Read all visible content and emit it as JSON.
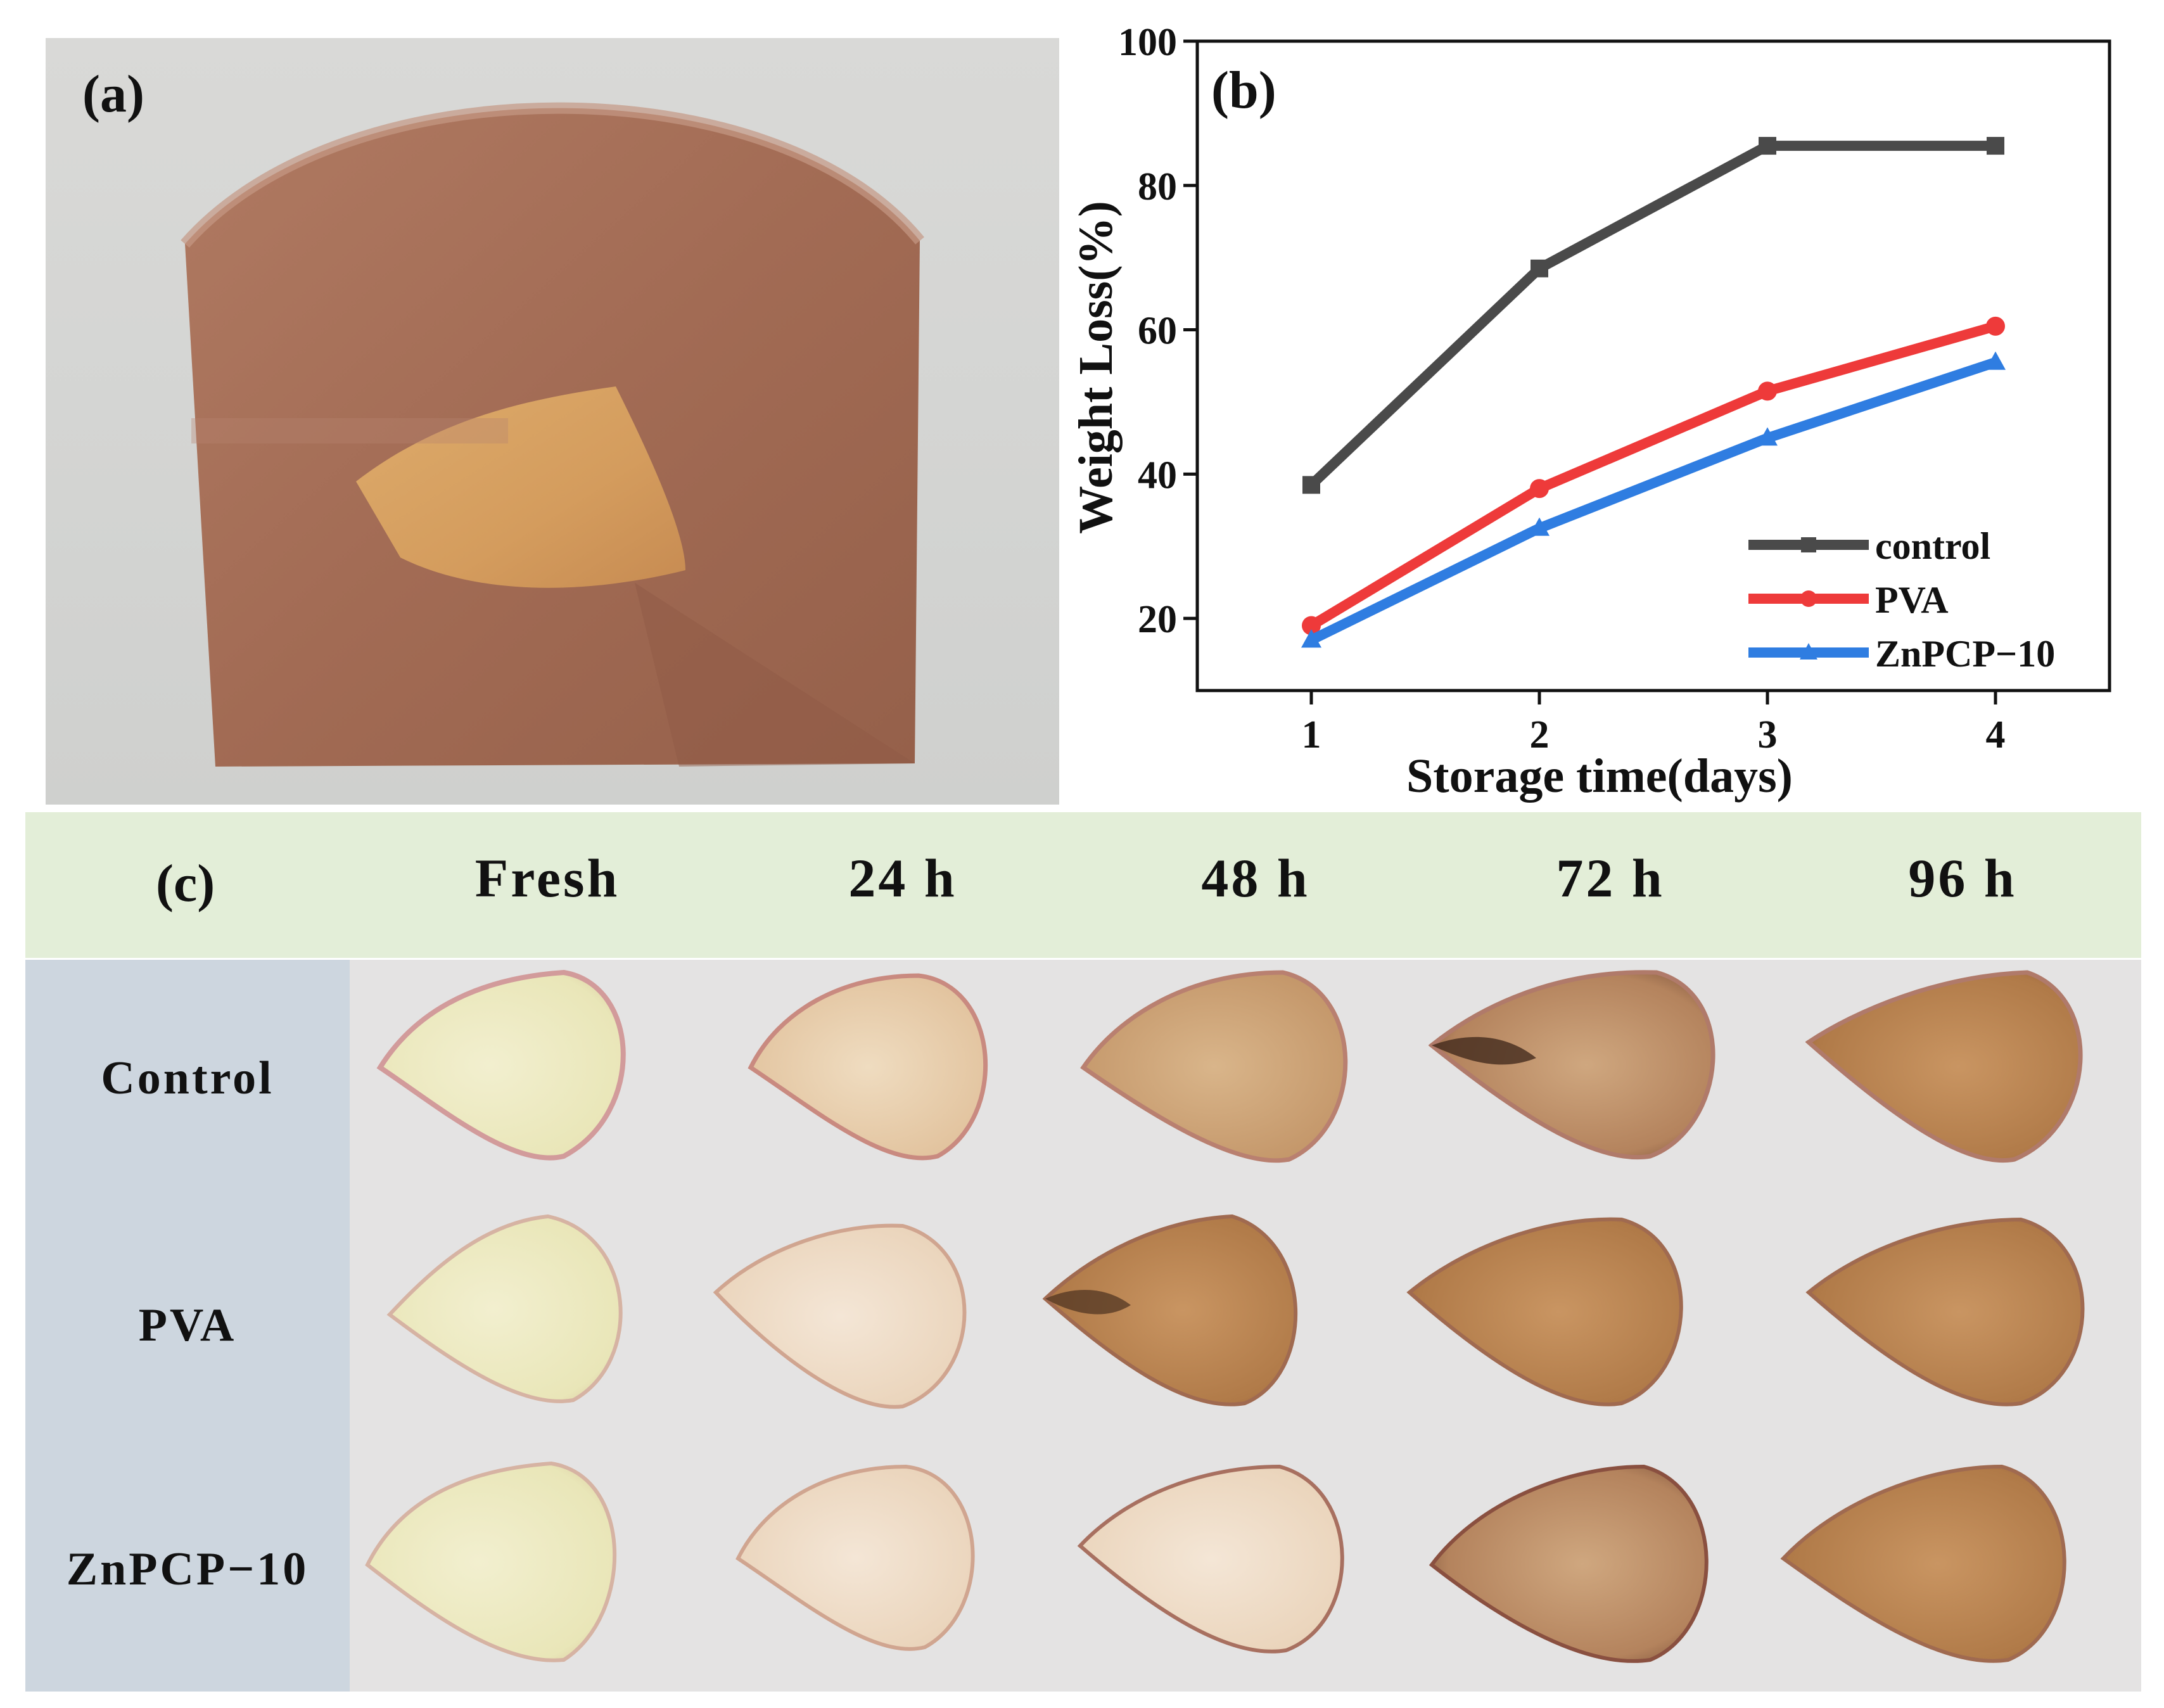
{
  "panels": {
    "a": {
      "label": "(a)"
    },
    "b": {
      "label": "(b)"
    },
    "c": {
      "label": "(c)",
      "columns": [
        "Fresh",
        "24 h",
        "48 h",
        "72 h",
        "96 h"
      ],
      "rows": [
        "Control",
        "PVA",
        "ZnPCP−10"
      ]
    }
  },
  "chart_data": {
    "type": "line",
    "title": "",
    "xlabel": "Storage time(days)",
    "ylabel": "Weight Loss(%)",
    "x": [
      1,
      2,
      3,
      4
    ],
    "xlim": [
      0.5,
      4.5
    ],
    "ylim": [
      10,
      100
    ],
    "xticks": [
      "1",
      "2",
      "3",
      "4"
    ],
    "yticks": [
      "20",
      "40",
      "60",
      "80",
      "100"
    ],
    "ytick_values": [
      20,
      40,
      60,
      80,
      100
    ],
    "legend_position": "bottom-right",
    "series": [
      {
        "name": "control",
        "color": "#4a4a4a",
        "marker": "square",
        "values": [
          38.5,
          68.5,
          85.5,
          85.5
        ]
      },
      {
        "name": "PVA",
        "color": "#ee3a3a",
        "marker": "circle",
        "values": [
          19,
          38,
          51.5,
          60.5
        ]
      },
      {
        "name": "ZnPCP−10",
        "color": "#2f7de1",
        "marker": "triangle",
        "values": [
          17,
          32.5,
          45,
          55.5
        ]
      }
    ]
  },
  "colors": {
    "header_bg": "#e3eed8",
    "side_bg": "#cdd6df",
    "body_bg": "#e4e3e3",
    "bag": "#a26c55"
  }
}
